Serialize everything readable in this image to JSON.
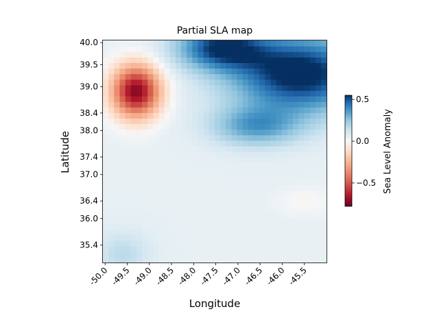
{
  "chart_data": {
    "type": "heatmap",
    "title": "Partial SLA map",
    "xlabel": "Longitude",
    "ylabel": "Latitude",
    "xlim": [
      -50.05,
      -45.0
    ],
    "ylim": [
      35.0,
      40.05
    ],
    "x_ticks": [
      -50.0,
      -49.5,
      -49.0,
      -48.5,
      -48.0,
      -47.5,
      -47.0,
      -46.5,
      -46.0,
      -45.5
    ],
    "x_tick_labels": [
      "-50.0",
      "-49.5",
      "-49.0",
      "-48.5",
      "-48.0",
      "-47.5",
      "-47.0",
      "-46.5",
      "-46.0",
      "-45.5"
    ],
    "y_ticks": [
      35.4,
      36.0,
      36.4,
      37.0,
      37.4,
      38.0,
      38.4,
      39.0,
      39.5,
      40.0
    ],
    "y_tick_labels": [
      "35.4",
      "36.0",
      "36.4",
      "37.0",
      "37.4",
      "38.0",
      "38.4",
      "39.0",
      "39.5",
      "40.0"
    ],
    "grid": false,
    "colormap": "RdBu",
    "colorbar": {
      "label": "Sea Level Anomaly",
      "vmin": -0.78,
      "vmax": 0.55,
      "ticks": [
        0.5,
        0.0,
        -0.5
      ],
      "tick_labels": [
        "0.5",
        "0.0",
        "−0.5"
      ]
    },
    "field_features": [
      {
        "kind": "low",
        "center": [
          -49.3,
          38.9
        ],
        "value": -0.78,
        "radius": [
          0.55,
          0.6
        ]
      },
      {
        "kind": "high",
        "center": [
          -45.6,
          39.3
        ],
        "value": 0.55,
        "radius": [
          1.6,
          0.9
        ]
      },
      {
        "kind": "high",
        "center": [
          -47.4,
          39.9
        ],
        "value": 0.45,
        "radius": [
          1.0,
          0.5
        ]
      },
      {
        "kind": "high",
        "center": [
          -46.6,
          38.1
        ],
        "value": 0.28,
        "radius": [
          1.0,
          0.45
        ]
      },
      {
        "kind": "weak-high",
        "center": [
          -49.6,
          35.2
        ],
        "value": 0.12,
        "radius": [
          0.6,
          0.5
        ]
      },
      {
        "kind": "weak-low",
        "center": [
          -45.5,
          36.4
        ],
        "value": -0.06,
        "radius": [
          0.6,
          0.3
        ]
      }
    ],
    "background_value": 0.05
  }
}
